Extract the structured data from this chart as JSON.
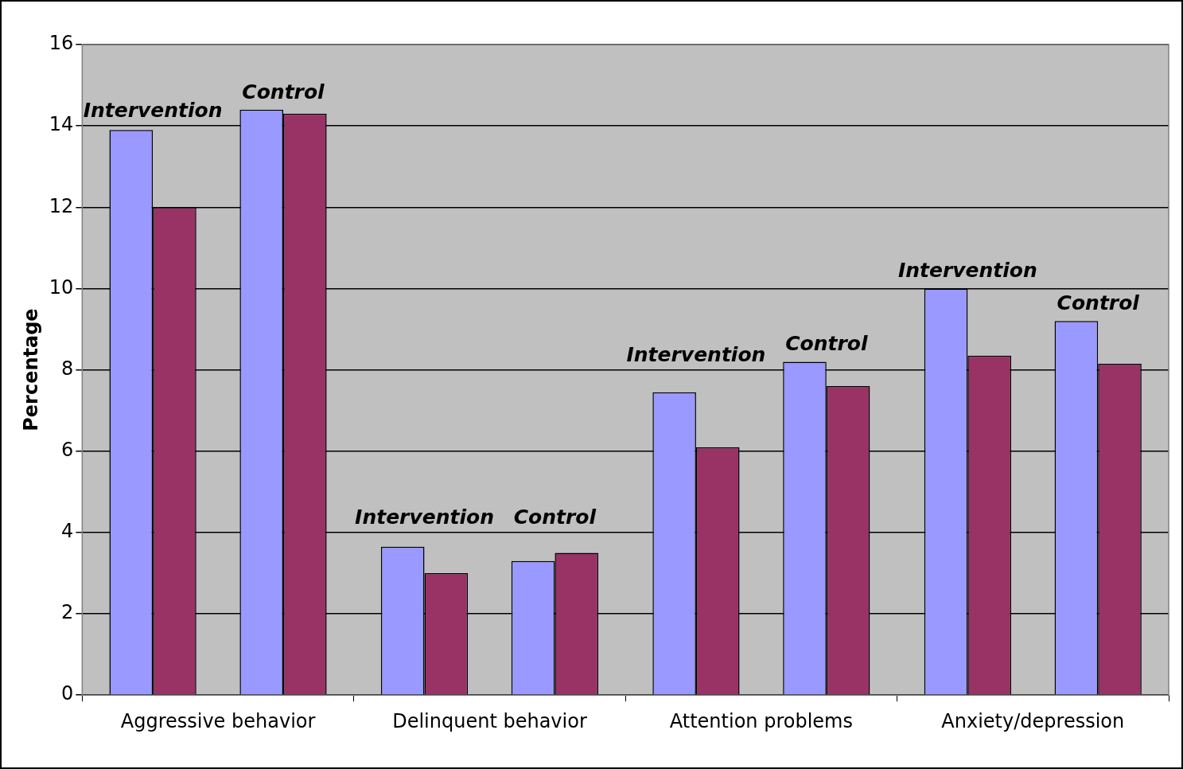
{
  "chart_data": {
    "type": "bar",
    "ylabel": "Percentage",
    "categories": [
      "Aggressive behavior",
      "Delinquent behavior",
      "Attention problems",
      "Anxiety/depression"
    ],
    "series": [
      {
        "color": "#9999ff",
        "values": [
          13.9,
          3.65,
          7.45,
          10.0
        ]
      },
      {
        "color": "#993366",
        "values": [
          12.0,
          3.0,
          6.1,
          8.35
        ]
      },
      {
        "color": "#9999ff",
        "values": [
          14.4,
          3.3,
          8.2,
          9.2
        ]
      },
      {
        "color": "#993366",
        "values": [
          14.3,
          3.5,
          7.6,
          8.15
        ]
      }
    ],
    "ylim": [
      0,
      16
    ],
    "yticks": [
      0,
      2,
      4,
      6,
      8,
      10,
      12,
      14,
      16
    ],
    "grid": "y",
    "legend": false,
    "annotations": [
      "Intervention",
      "Control",
      "Intervention",
      "Control",
      "Intervention",
      "Control",
      "Intervention",
      "Control"
    ]
  }
}
